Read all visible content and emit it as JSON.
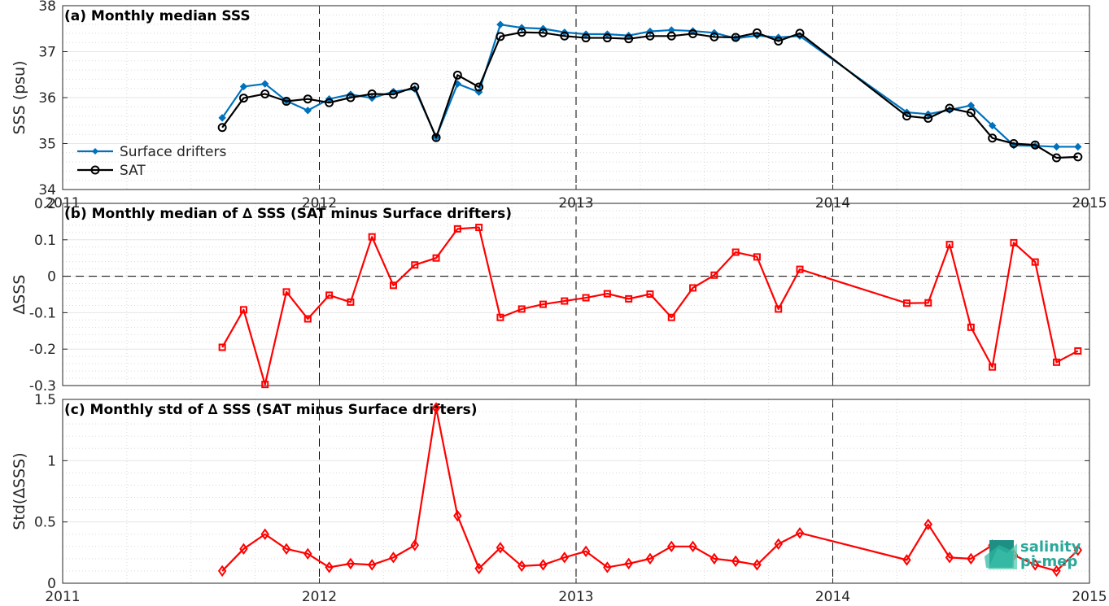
{
  "chart_data": [
    {
      "type": "line",
      "title": "(a) Monthly median SSS",
      "ylabel": "SSS (psu)",
      "ylim": [
        34,
        38
      ],
      "yticks": [
        34,
        35,
        36,
        37,
        38
      ],
      "xlim": [
        "2011-01-01",
        "2015-01-01"
      ],
      "xticks": [
        "2011",
        "2012",
        "2013",
        "2014",
        "2015"
      ],
      "grid": true,
      "legend": "bottom-left",
      "dates": [
        "2011-08",
        "2011-09",
        "2011-10",
        "2011-11",
        "2011-12",
        "2012-01",
        "2012-02",
        "2012-03",
        "2012-04",
        "2012-05",
        "2012-06",
        "2012-07",
        "2012-08",
        "2012-09",
        "2012-10",
        "2012-11",
        "2012-12",
        "2013-01",
        "2013-02",
        "2013-03",
        "2013-04",
        "2013-05",
        "2013-06",
        "2013-07",
        "2013-08",
        "2013-09",
        "2013-10",
        "2013-11",
        "2014-04",
        "2014-05",
        "2014-06",
        "2014-07",
        "2014-08",
        "2014-09",
        "2014-10",
        "2014-11",
        "2014-12"
      ],
      "series": [
        {
          "name": "Surface drifters",
          "color": "#0072BD",
          "marker": "diamond",
          "values": [
            35.56,
            36.24,
            36.3,
            35.93,
            35.72,
            35.97,
            36.07,
            35.99,
            36.13,
            36.19,
            35.14,
            36.3,
            36.12,
            37.59,
            37.52,
            37.5,
            37.42,
            37.38,
            37.38,
            37.35,
            37.44,
            37.47,
            37.45,
            37.41,
            37.29,
            37.35,
            37.31,
            37.34,
            35.68,
            35.64,
            35.73,
            35.83,
            35.39,
            34.96,
            34.95,
            34.93,
            34.93
          ]
        },
        {
          "name": "SAT",
          "color": "#000000",
          "marker": "circle",
          "values": [
            35.35,
            35.99,
            36.08,
            35.92,
            35.97,
            35.89,
            36.0,
            36.08,
            36.07,
            36.23,
            35.13,
            36.49,
            36.23,
            37.33,
            37.42,
            37.41,
            37.34,
            37.3,
            37.3,
            37.28,
            37.34,
            37.34,
            37.39,
            37.32,
            37.31,
            37.41,
            37.23,
            37.4,
            35.6,
            35.55,
            35.77,
            35.67,
            35.12,
            35.0,
            34.97,
            34.69,
            34.71
          ]
        }
      ]
    },
    {
      "type": "line",
      "title": "(b) Monthly median of ∆ SSS (SAT minus Surface drifters)",
      "ylabel": "∆SSS",
      "ylim": [
        -0.3,
        0.2
      ],
      "yticks": [
        "-0.3",
        "-0.2",
        "-0.1",
        "0",
        "0.1",
        "0.2"
      ],
      "xlim": [
        "2011-01-01",
        "2015-01-01"
      ],
      "grid": true,
      "zero_line": "dashed",
      "series": [
        {
          "name": "",
          "color": "#FF0000",
          "marker": "square",
          "values": [
            -0.195,
            -0.092,
            -0.297,
            -0.043,
            -0.117,
            -0.052,
            -0.071,
            0.108,
            -0.025,
            0.031,
            0.05,
            0.13,
            0.134,
            -0.113,
            -0.09,
            -0.077,
            -0.068,
            -0.059,
            -0.048,
            -0.062,
            -0.049,
            -0.113,
            -0.032,
            0.003,
            0.066,
            0.053,
            -0.09,
            0.019,
            -0.074,
            -0.073,
            0.087,
            -0.14,
            -0.249,
            0.092,
            0.039,
            -0.236,
            -0.205
          ]
        }
      ]
    },
    {
      "type": "line",
      "title": "(c) Monthly std of ∆ SSS (SAT minus Surface drifters)",
      "ylabel": "Std(∆SSS)",
      "ylim": [
        0,
        1.5
      ],
      "yticks": [
        "0",
        "0.5",
        "1",
        "1.5"
      ],
      "xlim": [
        "2011-01-01",
        "2015-01-01"
      ],
      "xticks": [
        "2011",
        "2012",
        "2013",
        "2014",
        "2015"
      ],
      "grid": true,
      "series": [
        {
          "name": "",
          "color": "#FF0000",
          "marker": "diamond",
          "values": [
            0.1,
            0.28,
            0.4,
            0.28,
            0.24,
            0.13,
            0.16,
            0.15,
            0.21,
            0.31,
            1.43,
            0.55,
            0.12,
            0.29,
            0.14,
            0.15,
            0.21,
            0.26,
            0.13,
            0.16,
            0.2,
            0.3,
            0.3,
            0.2,
            0.18,
            0.15,
            0.32,
            0.41,
            0.19,
            0.48,
            0.21,
            0.2,
            0.31,
            0.23,
            0.15,
            0.1,
            0.27
          ]
        }
      ]
    }
  ],
  "logo": {
    "line1": "salinity",
    "line2": "pi-mep",
    "color": "#2ba89a"
  }
}
